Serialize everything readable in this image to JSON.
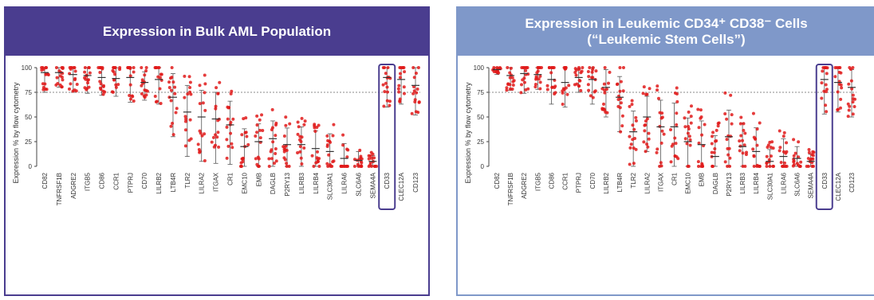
{
  "colors": {
    "left_header": "#4a3d8f",
    "right_header": "#7f98c9",
    "point": "#e01a1a",
    "highlight": "#4a3d8f"
  },
  "panels": [
    {
      "title": "Expression in Bulk AML Population",
      "subtitle": ""
    },
    {
      "title": "Expression in Leukemic CD34⁺ CD38⁻ Cells",
      "subtitle": "(“Leukemic Stem Cells”)"
    }
  ],
  "chart_data": [
    {
      "type": "scatter",
      "ylabel": "Expression % by flow cytometry",
      "ylim": [
        0,
        100
      ],
      "yticks": [
        0,
        25,
        50,
        75,
        100
      ],
      "reference_line": 75,
      "highlight": "CD33",
      "categories": [
        "CD82",
        "TNFRSF1B",
        "ADGRE2",
        "ITGB5",
        "CD86",
        "CCR1",
        "PTPRJ",
        "CD70",
        "LILRB2",
        "LTB4R",
        "TLR2",
        "LILRA2",
        "ITGAX",
        "CR1",
        "EMC10",
        "EMB",
        "DAGLB",
        "P2RY13",
        "LILRB3",
        "LILRB4",
        "SLC30A1",
        "LILRA6",
        "SLC6A6",
        "SEMA4A",
        "CD33",
        "CLEC12A",
        "CD123"
      ],
      "medians": [
        95,
        95,
        93,
        92,
        90,
        89,
        90,
        85,
        88,
        70,
        55,
        50,
        48,
        42,
        20,
        25,
        28,
        22,
        22,
        18,
        15,
        8,
        6,
        5,
        90,
        88,
        82
      ],
      "spreads": [
        20,
        15,
        18,
        18,
        18,
        18,
        25,
        18,
        25,
        40,
        45,
        45,
        45,
        40,
        30,
        30,
        30,
        28,
        30,
        30,
        30,
        25,
        15,
        10,
        30,
        25,
        30
      ]
    },
    {
      "type": "scatter",
      "ylabel": "Expression % by flow cytometry",
      "ylim": [
        0,
        100
      ],
      "yticks": [
        0,
        25,
        50,
        75,
        100
      ],
      "reference_line": 75,
      "highlight": "CD33",
      "categories": [
        "CD82",
        "TNFRSF1B",
        "ADGRE2",
        "ITGB5",
        "CD86",
        "CCR1",
        "PTPRJ",
        "CD70",
        "LILRB2",
        "LTB4R",
        "TLR2",
        "LILRA2",
        "ITGAX",
        "CR1",
        "EMC10",
        "EMB",
        "DAGLB",
        "P2RY13",
        "LILRB3",
        "LILRB4",
        "SLC30A1",
        "LILRA6",
        "SLC6A6",
        "SEMA4A",
        "CD33",
        "CLEC12A",
        "CD123"
      ],
      "medians": [
        98,
        92,
        94,
        93,
        88,
        85,
        90,
        88,
        80,
        70,
        35,
        50,
        40,
        40,
        25,
        22,
        10,
        30,
        20,
        15,
        5,
        10,
        8,
        5,
        88,
        85,
        80
      ],
      "spreads": [
        5,
        15,
        20,
        15,
        25,
        25,
        15,
        25,
        30,
        35,
        35,
        35,
        45,
        40,
        40,
        40,
        35,
        45,
        40,
        40,
        20,
        30,
        20,
        12,
        35,
        30,
        30
      ]
    }
  ]
}
